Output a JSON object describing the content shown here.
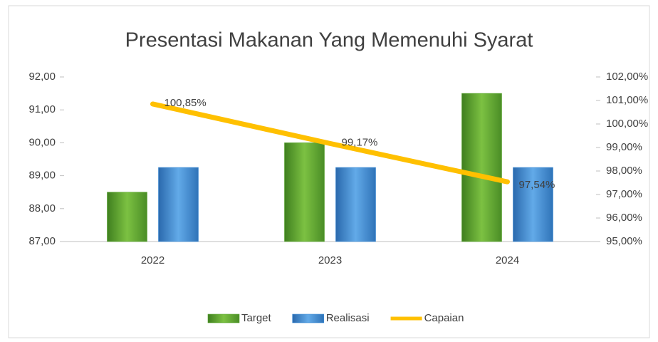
{
  "chart_data": {
    "type": "bar",
    "title": "Presentasi Makanan Yang Memenuhi Syarat",
    "categories": [
      "2022",
      "2023",
      "2024"
    ],
    "series": [
      {
        "name": "Target",
        "color": "#5aa632",
        "values": [
          88.5,
          90,
          91.5
        ]
      },
      {
        "name": "Realisasi",
        "color": "#3d8bd4",
        "values": [
          89.25,
          89.25,
          89.25
        ]
      },
      {
        "name": "Capaian",
        "type": "line",
        "axis": "y2",
        "color": "#ffc000",
        "values": [
          100.85,
          99.17,
          97.54
        ],
        "value_labels": [
          "100,85%",
          "99,17%",
          "97,54%"
        ]
      }
    ],
    "ylim": [
      87,
      92
    ],
    "yticks": [
      {
        "value": 87,
        "label": "87,00"
      },
      {
        "value": 88,
        "label": "88,00"
      },
      {
        "value": 89,
        "label": "89,00"
      },
      {
        "value": 90,
        "label": "90,00"
      },
      {
        "value": 91,
        "label": "91,00"
      },
      {
        "value": 92,
        "label": "92,00"
      }
    ],
    "y2lim": [
      95,
      102
    ],
    "y2ticks": [
      {
        "value": 95,
        "label": "95,00%"
      },
      {
        "value": 96,
        "label": "96,00%"
      },
      {
        "value": 97,
        "label": "97,00%"
      },
      {
        "value": 98,
        "label": "98,00%"
      },
      {
        "value": 99,
        "label": "99,00%"
      },
      {
        "value": 100,
        "label": "100,00%"
      },
      {
        "value": 101,
        "label": "101,00%"
      },
      {
        "value": 102,
        "label": "102,00%"
      }
    ],
    "grid": false,
    "legend": "bottom"
  }
}
